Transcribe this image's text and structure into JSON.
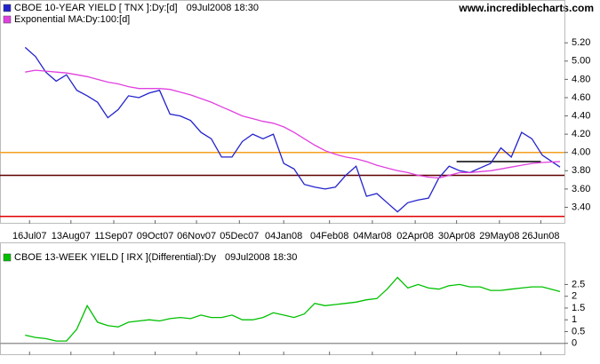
{
  "source": "www.incrediblecharts.com",
  "chart_data": [
    {
      "type": "line",
      "timestamp": "09Jul2008 18:30",
      "x": [
        "2007-07-13",
        "2007-07-20",
        "2007-07-27",
        "2007-08-03",
        "2007-08-10",
        "2007-08-17",
        "2007-08-24",
        "2007-08-31",
        "2007-09-07",
        "2007-09-14",
        "2007-09-21",
        "2007-09-28",
        "2007-10-05",
        "2007-10-12",
        "2007-10-19",
        "2007-10-26",
        "2007-11-02",
        "2007-11-09",
        "2007-11-16",
        "2007-11-23",
        "2007-11-30",
        "2007-12-07",
        "2007-12-14",
        "2007-12-21",
        "2007-12-28",
        "2008-01-04",
        "2008-01-11",
        "2008-01-18",
        "2008-01-25",
        "2008-02-01",
        "2008-02-08",
        "2008-02-15",
        "2008-02-22",
        "2008-02-29",
        "2008-03-07",
        "2008-03-14",
        "2008-03-21",
        "2008-03-28",
        "2008-04-04",
        "2008-04-11",
        "2008-04-18",
        "2008-04-25",
        "2008-05-02",
        "2008-05-09",
        "2008-05-16",
        "2008-05-23",
        "2008-05-30",
        "2008-06-06",
        "2008-06-13",
        "2008-06-20",
        "2008-06-27",
        "2008-07-09"
      ],
      "series": [
        {
          "name": "CBOE 10-YEAR YIELD [ TNX ]:Dy:[d]",
          "color": "#2222cc",
          "values": [
            5.15,
            5.05,
            4.88,
            4.78,
            4.85,
            4.68,
            4.62,
            4.55,
            4.38,
            4.47,
            4.62,
            4.6,
            4.65,
            4.68,
            4.42,
            4.4,
            4.35,
            4.22,
            4.15,
            3.95,
            3.95,
            4.12,
            4.2,
            4.15,
            4.2,
            3.88,
            3.82,
            3.65,
            3.62,
            3.6,
            3.62,
            3.75,
            3.85,
            3.52,
            3.55,
            3.45,
            3.35,
            3.45,
            3.48,
            3.5,
            3.72,
            3.85,
            3.8,
            3.78,
            3.83,
            3.88,
            4.05,
            3.95,
            4.22,
            4.15,
            3.97,
            3.84
          ]
        },
        {
          "name": "Exponential MA:Dy:100:[d]",
          "color": "#e040e0",
          "values": [
            4.88,
            4.9,
            4.89,
            4.88,
            4.87,
            4.85,
            4.83,
            4.8,
            4.77,
            4.75,
            4.72,
            4.7,
            4.7,
            4.7,
            4.69,
            4.66,
            4.63,
            4.59,
            4.55,
            4.5,
            4.45,
            4.4,
            4.37,
            4.34,
            4.32,
            4.28,
            4.22,
            4.15,
            4.08,
            4.02,
            3.98,
            3.95,
            3.93,
            3.9,
            3.86,
            3.83,
            3.8,
            3.78,
            3.75,
            3.73,
            3.72,
            3.75,
            3.78,
            3.78,
            3.79,
            3.8,
            3.82,
            3.84,
            3.86,
            3.88,
            3.89,
            3.9
          ]
        }
      ],
      "hlines": [
        {
          "value": 4.0,
          "color": "#f5a020"
        },
        {
          "value": 3.3,
          "color": "#e00000"
        },
        {
          "value": 3.75,
          "color": "#600000"
        },
        {
          "value": 3.9,
          "color": "#000000",
          "from": "2008-04-30",
          "to": "2008-06-26"
        }
      ],
      "xlim": [
        "2007-06-26",
        "2008-07-12"
      ],
      "xticks": [
        {
          "value": "2007-07-16",
          "label": "16Jul07"
        },
        {
          "value": "2007-08-13",
          "label": "13Aug07"
        },
        {
          "value": "2007-09-11",
          "label": "11Sep07"
        },
        {
          "value": "2007-10-09",
          "label": "09Oct07"
        },
        {
          "value": "2007-11-06",
          "label": "06Nov07"
        },
        {
          "value": "2007-12-05",
          "label": "05Dec07"
        },
        {
          "value": "2008-01-04",
          "label": "04Jan08"
        },
        {
          "value": "2008-02-04",
          "label": "04Feb08"
        },
        {
          "value": "2008-03-04",
          "label": "04Mar08"
        },
        {
          "value": "2008-04-02",
          "label": "02Apr08"
        },
        {
          "value": "2008-04-30",
          "label": "30Apr08"
        },
        {
          "value": "2008-05-29",
          "label": "29May08"
        },
        {
          "value": "2008-06-26",
          "label": "26Jun08"
        }
      ],
      "ylim": [
        3.22,
        5.62
      ],
      "yticks": [
        {
          "value": 3.4,
          "label": "3.40"
        },
        {
          "value": 3.6,
          "label": "3.60"
        },
        {
          "value": 3.8,
          "label": "3.80"
        },
        {
          "value": 4.0,
          "label": "4.00"
        },
        {
          "value": 4.2,
          "label": "4.20"
        },
        {
          "value": 4.4,
          "label": "4.40"
        },
        {
          "value": 4.6,
          "label": "4.60"
        },
        {
          "value": 4.8,
          "label": "4.80"
        },
        {
          "value": 5.0,
          "label": "5.00"
        },
        {
          "value": 5.2,
          "label": "5.20"
        }
      ]
    },
    {
      "type": "line",
      "timestamp": "09Jul2008 18:30",
      "x": [
        "2007-07-13",
        "2007-07-20",
        "2007-07-27",
        "2007-08-03",
        "2007-08-10",
        "2007-08-17",
        "2007-08-24",
        "2007-08-31",
        "2007-09-07",
        "2007-09-14",
        "2007-09-21",
        "2007-09-28",
        "2007-10-05",
        "2007-10-12",
        "2007-10-19",
        "2007-10-26",
        "2007-11-02",
        "2007-11-09",
        "2007-11-16",
        "2007-11-23",
        "2007-11-30",
        "2007-12-07",
        "2007-12-14",
        "2007-12-21",
        "2007-12-28",
        "2008-01-04",
        "2008-01-11",
        "2008-01-18",
        "2008-01-25",
        "2008-02-01",
        "2008-02-08",
        "2008-02-15",
        "2008-02-22",
        "2008-02-29",
        "2008-03-07",
        "2008-03-14",
        "2008-03-21",
        "2008-03-28",
        "2008-04-04",
        "2008-04-11",
        "2008-04-18",
        "2008-04-25",
        "2008-05-02",
        "2008-05-09",
        "2008-05-16",
        "2008-05-23",
        "2008-05-30",
        "2008-06-06",
        "2008-06-13",
        "2008-06-20",
        "2008-06-27",
        "2008-07-09"
      ],
      "series": [
        {
          "name": "CBOE 13-WEEK YIELD [ IRX ](Differential):Dy",
          "color": "#00c000",
          "values": [
            0.35,
            0.25,
            0.2,
            0.1,
            0.1,
            0.6,
            1.6,
            0.9,
            0.75,
            0.7,
            0.9,
            0.95,
            1.0,
            0.95,
            1.05,
            1.1,
            1.05,
            1.2,
            1.1,
            1.1,
            1.2,
            1.0,
            1.0,
            1.1,
            1.3,
            1.2,
            1.1,
            1.25,
            1.7,
            1.6,
            1.65,
            1.7,
            1.75,
            1.85,
            1.9,
            2.3,
            2.8,
            2.35,
            2.5,
            2.35,
            2.3,
            2.45,
            2.5,
            2.4,
            2.4,
            2.25,
            2.25,
            2.3,
            2.35,
            2.4,
            2.4,
            2.2
          ]
        }
      ],
      "hlines": [
        {
          "value": 0,
          "color": "#999999"
        }
      ],
      "xlim": [
        "2007-06-26",
        "2008-07-12"
      ],
      "ylim": [
        -0.5,
        4.1
      ],
      "yticks": [
        0,
        0.5,
        1,
        1.5,
        2,
        2.5
      ]
    }
  ]
}
